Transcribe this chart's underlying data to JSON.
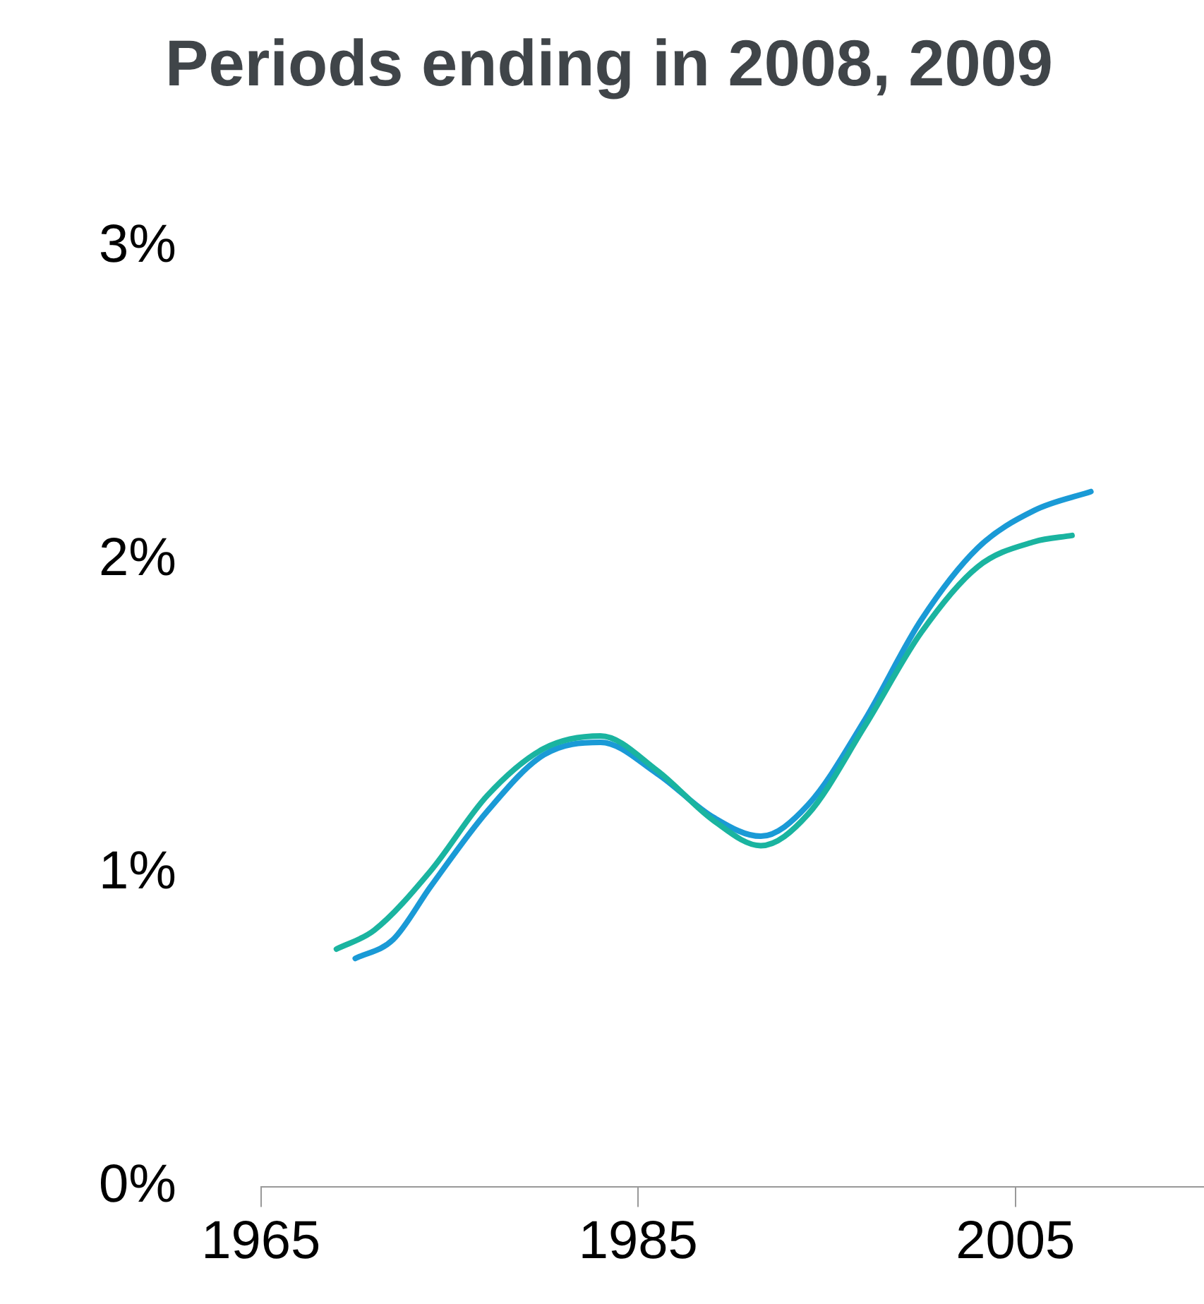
{
  "chart_data": {
    "type": "line",
    "title": "Periods ending in 2008, 2009",
    "xlim": [
      1965,
      2015
    ],
    "xticks": [
      1965,
      1985,
      2005
    ],
    "ylim": [
      0,
      3
    ],
    "yticks": [
      {
        "value": 0,
        "label": "0%"
      },
      {
        "value": 1,
        "label": "1%"
      },
      {
        "value": 2,
        "label": "2%"
      },
      {
        "value": 3,
        "label": "3%"
      }
    ],
    "marker": "none",
    "legend": false,
    "series": [
      {
        "color": "#1ab4a0",
        "x": [
          1969,
          1971,
          1974,
          1977,
          1980,
          1983,
          1986,
          1989,
          1991.5,
          1994,
          1997,
          2000,
          2003,
          2006,
          2008
        ],
        "values": [
          0.76,
          0.82,
          1.01,
          1.25,
          1.4,
          1.44,
          1.33,
          1.17,
          1.09,
          1.19,
          1.47,
          1.77,
          1.98,
          2.06,
          2.08
        ]
      },
      {
        "color": "#1a9ad6",
        "x": [
          1970,
          1972,
          1974,
          1977,
          1980,
          1983,
          1986,
          1989,
          1991.5,
          1994,
          1997,
          2000,
          2003,
          2006,
          2009
        ],
        "values": [
          0.73,
          0.79,
          0.96,
          1.2,
          1.38,
          1.42,
          1.32,
          1.18,
          1.12,
          1.22,
          1.49,
          1.81,
          2.04,
          2.16,
          2.22
        ]
      }
    ]
  }
}
